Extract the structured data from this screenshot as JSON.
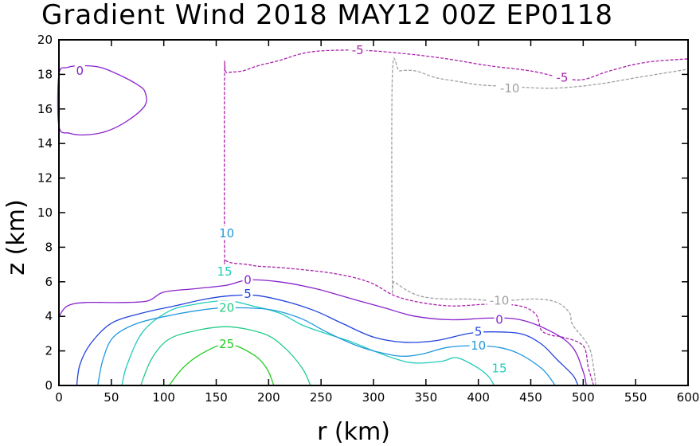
{
  "chart_data": {
    "type": "contour",
    "title": "Gradient Wind 2018 MAY12 00Z   EP0118",
    "xlabel": "r (km)",
    "ylabel": "z (km)",
    "xlim": [
      0,
      600
    ],
    "ylim": [
      0,
      20
    ],
    "x_ticks": [
      0,
      50,
      100,
      150,
      200,
      250,
      300,
      350,
      400,
      450,
      500,
      550,
      600
    ],
    "y_ticks": [
      0,
      2,
      4,
      6,
      8,
      10,
      12,
      14,
      16,
      18,
      20
    ],
    "grid": false,
    "contours": [
      {
        "level": 25,
        "label": "25",
        "color": "#22cc22",
        "dashed": false,
        "label_at": [
          160,
          2.4
        ],
        "points": [
          [
            105,
            0
          ],
          [
            118,
            1.0
          ],
          [
            135,
            1.8
          ],
          [
            160,
            2.4
          ],
          [
            185,
            1.8
          ],
          [
            198,
            1.0
          ],
          [
            205,
            0
          ]
        ]
      },
      {
        "level": 20,
        "label": "20",
        "color": "#22cc88",
        "dashed": false,
        "label_at": [
          160,
          4.5
        ],
        "points": [
          [
            78,
            0
          ],
          [
            88,
            1.5
          ],
          [
            103,
            2.6
          ],
          [
            125,
            3.1
          ],
          [
            160,
            3.4
          ],
          [
            195,
            3.0
          ],
          [
            215,
            2.2
          ],
          [
            232,
            1.0
          ],
          [
            240,
            0
          ]
        ]
      },
      {
        "level": 15,
        "label": "15",
        "color": "#22ccbb",
        "dashed": false,
        "label_at": [
          158,
          6.6
        ],
        "points": [
          [
            60,
            0
          ],
          [
            65,
            1.2
          ],
          [
            80,
            3.1
          ],
          [
            105,
            4.3
          ],
          [
            130,
            4.7
          ],
          [
            160,
            4.9
          ],
          [
            185,
            4.6
          ],
          [
            210,
            4.2
          ],
          [
            232,
            3.5
          ],
          [
            255,
            3.0
          ],
          [
            280,
            2.5
          ],
          [
            300,
            2.0
          ],
          [
            323,
            1.5
          ],
          [
            340,
            1.3
          ],
          [
            365,
            1.4
          ],
          [
            380,
            1.6
          ],
          [
            400,
            1.0
          ],
          [
            410,
            0.5
          ],
          [
            415,
            0
          ]
        ],
        "extra_label": {
          "label": "15",
          "label_at": [
            420,
            1.0
          ]
        }
      },
      {
        "level": 10,
        "label": "10",
        "color": "#2299dd",
        "dashed": false,
        "label_at": [
          160,
          8.8
        ],
        "points": [
          [
            37,
            0
          ],
          [
            42,
            1.5
          ],
          [
            52,
            2.8
          ],
          [
            75,
            3.6
          ],
          [
            110,
            4.1
          ],
          [
            140,
            4.4
          ],
          [
            160,
            4.5
          ],
          [
            200,
            4.4
          ],
          [
            230,
            3.9
          ],
          [
            255,
            3.1
          ],
          [
            280,
            2.4
          ],
          [
            300,
            2.0
          ],
          [
            325,
            1.7
          ],
          [
            345,
            1.8
          ],
          [
            370,
            2.2
          ],
          [
            395,
            2.3
          ],
          [
            420,
            2.2
          ],
          [
            440,
            1.8
          ],
          [
            460,
            1.0
          ],
          [
            470,
            0.3
          ],
          [
            473,
            0
          ]
        ],
        "extra_label": {
          "label": "10",
          "label_at": [
            400,
            2.3
          ]
        }
      },
      {
        "level": 5,
        "label": "5",
        "color": "#2244dd",
        "dashed": false,
        "label_at": [
          180,
          5.3
        ],
        "points": [
          [
            17,
            0
          ],
          [
            20,
            1.2
          ],
          [
            30,
            2.4
          ],
          [
            50,
            3.6
          ],
          [
            80,
            4.2
          ],
          [
            110,
            4.6
          ],
          [
            140,
            5.0
          ],
          [
            165,
            5.2
          ],
          [
            190,
            5.2
          ],
          [
            220,
            4.8
          ],
          [
            245,
            4.3
          ],
          [
            270,
            3.6
          ],
          [
            300,
            2.8
          ],
          [
            330,
            2.5
          ],
          [
            360,
            2.6
          ],
          [
            390,
            3.0
          ],
          [
            410,
            3.1
          ],
          [
            440,
            3.0
          ],
          [
            460,
            2.4
          ],
          [
            475,
            1.5
          ],
          [
            490,
            0.6
          ],
          [
            495,
            0
          ]
        ],
        "extra_label": {
          "label": "5",
          "label_at": [
            400,
            3.1
          ]
        }
      },
      {
        "level": 0,
        "label": "0",
        "color": "#8822cc",
        "dashed": false,
        "label_at": [
          180,
          6.1
        ],
        "points": [
          [
            0,
            4.0
          ],
          [
            8,
            4.6
          ],
          [
            25,
            4.8
          ],
          [
            60,
            4.8
          ],
          [
            85,
            4.9
          ],
          [
            100,
            5.4
          ],
          [
            130,
            5.6
          ],
          [
            160,
            5.8
          ],
          [
            180,
            6.1
          ],
          [
            210,
            6.0
          ],
          [
            245,
            5.6
          ],
          [
            280,
            5.0
          ],
          [
            310,
            4.5
          ],
          [
            340,
            4.0
          ],
          [
            375,
            3.8
          ],
          [
            410,
            3.9
          ],
          [
            440,
            3.8
          ],
          [
            470,
            3.1
          ],
          [
            490,
            2.2
          ],
          [
            500,
            0.8
          ],
          [
            503,
            0
          ]
        ],
        "extra_label": {
          "label": "0",
          "label_at": [
            420,
            3.8
          ]
        }
      },
      {
        "level": 0,
        "label": "0",
        "color": "#8822cc",
        "dashed": false,
        "closed": true,
        "label_at": [
          20,
          18.2
        ],
        "points": [
          [
            0,
            15.0
          ],
          [
            10,
            14.6
          ],
          [
            25,
            14.5
          ],
          [
            45,
            14.7
          ],
          [
            65,
            15.3
          ],
          [
            82,
            16.2
          ],
          [
            82,
            17.0
          ],
          [
            75,
            17.4
          ],
          [
            60,
            17.9
          ],
          [
            40,
            18.4
          ],
          [
            22,
            18.5
          ],
          [
            8,
            18.4
          ],
          [
            0,
            18.0
          ]
        ]
      },
      {
        "level": -5,
        "label": "-5",
        "color": "#aa22aa",
        "dashed": true,
        "label_at": [
          285,
          19.4
        ],
        "points": [
          [
            510,
            0
          ],
          [
            505,
            1.0
          ],
          [
            500,
            2.3
          ],
          [
            480,
            2.8
          ],
          [
            470,
            2.9
          ],
          [
            460,
            3.2
          ],
          [
            455,
            4.1
          ],
          [
            440,
            4.6
          ],
          [
            410,
            4.7
          ],
          [
            375,
            4.6
          ],
          [
            345,
            4.8
          ],
          [
            320,
            5.2
          ],
          [
            295,
            6.0
          ],
          [
            260,
            6.5
          ],
          [
            215,
            6.8
          ],
          [
            190,
            6.9
          ],
          [
            180,
            7.0
          ],
          [
            160,
            7.2
          ],
          [
            158,
            8.0
          ],
          [
            158,
            18.0
          ],
          [
            160,
            18.1
          ],
          [
            175,
            18.2
          ],
          [
            190,
            18.5
          ],
          [
            210,
            18.8
          ],
          [
            240,
            19.3
          ],
          [
            285,
            19.4
          ],
          [
            330,
            19.2
          ],
          [
            370,
            18.9
          ],
          [
            410,
            18.5
          ],
          [
            450,
            18.2
          ],
          [
            480,
            17.8
          ],
          [
            500,
            17.7
          ],
          [
            525,
            18.2
          ],
          [
            560,
            18.7
          ],
          [
            600,
            18.9
          ]
        ],
        "extra_label": {
          "label": "-5",
          "label_at": [
            480,
            17.8
          ]
        }
      },
      {
        "level": -10,
        "label": "-10",
        "color": "#a0a0a0",
        "dashed": true,
        "label_at": [
          430,
          17.2
        ],
        "points": [
          [
            512,
            0
          ],
          [
            510,
            1.0
          ],
          [
            505,
            2.3
          ],
          [
            490,
            3.5
          ],
          [
            487,
            4.2
          ],
          [
            475,
            4.8
          ],
          [
            455,
            5.0
          ],
          [
            420,
            4.9
          ],
          [
            390,
            5.0
          ],
          [
            370,
            5.0
          ],
          [
            350,
            5.1
          ],
          [
            335,
            5.4
          ],
          [
            320,
            6.0
          ],
          [
            318,
            6.2
          ],
          [
            318,
            18.0
          ],
          [
            325,
            18.2
          ],
          [
            340,
            18.2
          ],
          [
            360,
            17.8
          ],
          [
            380,
            17.6
          ],
          [
            400,
            17.4
          ],
          [
            430,
            17.3
          ],
          [
            470,
            17.2
          ],
          [
            510,
            17.4
          ],
          [
            550,
            17.8
          ],
          [
            600,
            18.3
          ]
        ],
        "extra_label": {
          "label": "-10",
          "label_at": [
            420,
            4.9
          ]
        }
      }
    ]
  }
}
